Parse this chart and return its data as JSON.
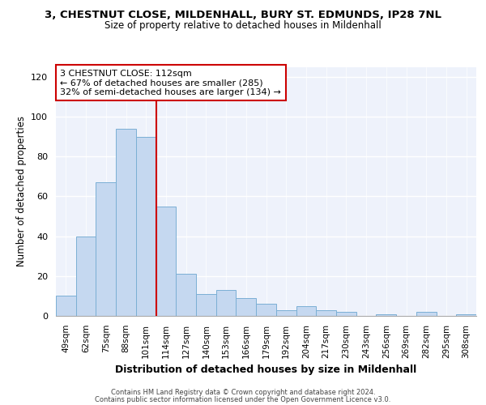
{
  "title1": "3, CHESTNUT CLOSE, MILDENHALL, BURY ST. EDMUNDS, IP28 7NL",
  "title2": "Size of property relative to detached houses in Mildenhall",
  "xlabel": "Distribution of detached houses by size in Mildenhall",
  "ylabel": "Number of detached properties",
  "categories": [
    "49sqm",
    "62sqm",
    "75sqm",
    "88sqm",
    "101sqm",
    "114sqm",
    "127sqm",
    "140sqm",
    "153sqm",
    "166sqm",
    "179sqm",
    "192sqm",
    "204sqm",
    "217sqm",
    "230sqm",
    "243sqm",
    "256sqm",
    "269sqm",
    "282sqm",
    "295sqm",
    "308sqm"
  ],
  "values": [
    10,
    40,
    67,
    94,
    90,
    55,
    21,
    11,
    13,
    9,
    6,
    3,
    5,
    3,
    2,
    0,
    1,
    0,
    2,
    0,
    1
  ],
  "bar_color": "#c5d8f0",
  "bar_edge_color": "#7bafd4",
  "annotation_text": "3 CHESTNUT CLOSE: 112sqm\n← 67% of detached houses are smaller (285)\n32% of semi-detached houses are larger (134) →",
  "annotation_box_color": "#ffffff",
  "annotation_box_edge_color": "#cc0000",
  "vline_color": "#cc0000",
  "ylim": [
    0,
    125
  ],
  "yticks": [
    0,
    20,
    40,
    60,
    80,
    100,
    120
  ],
  "background_color": "#eef2fb",
  "grid_color": "#ffffff",
  "footer1": "Contains HM Land Registry data © Crown copyright and database right 2024.",
  "footer2": "Contains public sector information licensed under the Open Government Licence v3.0."
}
